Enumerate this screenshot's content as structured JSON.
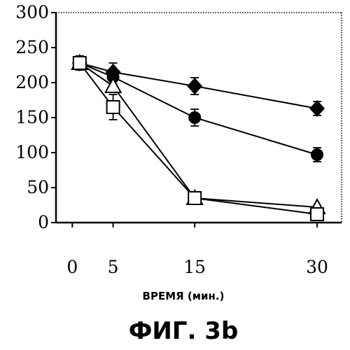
{
  "chart_data": {
    "type": "line",
    "x": [
      0,
      5,
      15,
      30
    ],
    "xticks": [
      "0",
      "5",
      "15",
      "30"
    ],
    "yticks": [
      "300",
      "250",
      "200",
      "150",
      "100",
      "50",
      "0"
    ],
    "xlabel": "ВРЕМЯ (мин.)",
    "ylabel": "",
    "title": "",
    "xlim": [
      -2,
      33
    ],
    "ylim": [
      0,
      300
    ],
    "grid": false,
    "series": [
      {
        "marker": "diamond-filled",
        "values": [
          228,
          215,
          195,
          163
        ],
        "errors": [
          10,
          13,
          12,
          10
        ]
      },
      {
        "marker": "circle-filled",
        "values": [
          228,
          208,
          150,
          97
        ],
        "errors": [
          10,
          10,
          12,
          10
        ]
      },
      {
        "marker": "triangle-open",
        "values": [
          228,
          195,
          35,
          22
        ],
        "errors": [
          10,
          0,
          0,
          0
        ]
      },
      {
        "marker": "square-open",
        "values": [
          228,
          165,
          35,
          12
        ],
        "errors": [
          10,
          18,
          0,
          0
        ]
      }
    ]
  },
  "caption": "ФИГ. 3b"
}
